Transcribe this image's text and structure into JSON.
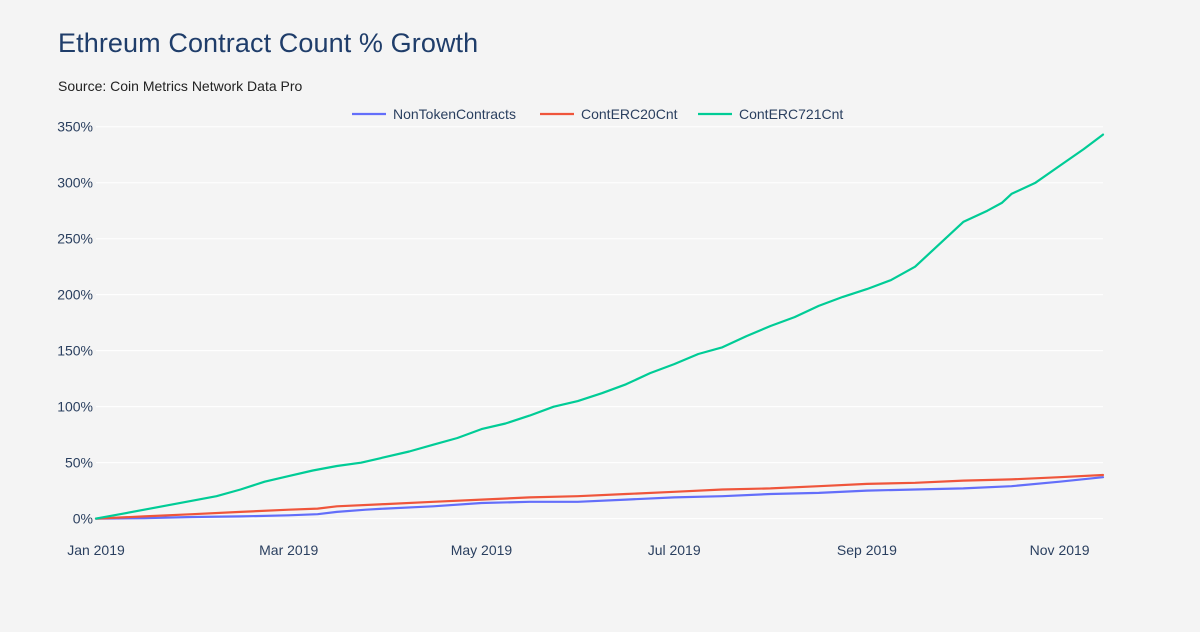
{
  "title": "Ethreum Contract Count % Growth",
  "subtitle": "Source: Coin Metrics Network Data Pro",
  "colors": {
    "background": "#f4f4f4",
    "grid": "#ffffff",
    "title": "#1f3d6a",
    "tick_text": "#2a3f5f"
  },
  "chart_data": {
    "type": "line",
    "title": "Ethreum Contract Count % Growth",
    "xlabel": "",
    "ylabel": "",
    "x_unit": "month_index (0 = Jan 1 2019)",
    "xlim": [
      0,
      10.45
    ],
    "ylim": [
      -3,
      356
    ],
    "x_ticks": [
      {
        "value": 0,
        "label": "Jan 2019"
      },
      {
        "value": 2,
        "label": "Mar 2019"
      },
      {
        "value": 4,
        "label": "May 2019"
      },
      {
        "value": 6,
        "label": "Jul 2019"
      },
      {
        "value": 8,
        "label": "Sep 2019"
      },
      {
        "value": 10,
        "label": "Nov 2019"
      }
    ],
    "y_ticks": [
      {
        "value": 0,
        "label": "0%"
      },
      {
        "value": 50,
        "label": "50%"
      },
      {
        "value": 100,
        "label": "100%"
      },
      {
        "value": 150,
        "label": "150%"
      },
      {
        "value": 200,
        "label": "200%"
      },
      {
        "value": 250,
        "label": "250%"
      },
      {
        "value": 300,
        "label": "300%"
      },
      {
        "value": 350,
        "label": "350%"
      }
    ],
    "grid": true,
    "legend_position": "top-center",
    "series": [
      {
        "name": "NonTokenContracts",
        "color": "#636efa",
        "x": [
          0,
          0.5,
          1,
          1.5,
          2,
          2.3,
          2.5,
          2.8,
          3,
          3.5,
          4,
          4.5,
          5,
          5.5,
          6,
          6.5,
          7,
          7.5,
          8,
          8.5,
          9,
          9.5,
          10,
          10.45
        ],
        "values": [
          0,
          0.5,
          1.5,
          2,
          3,
          4,
          6,
          8,
          9,
          11,
          14,
          15,
          15,
          17,
          19,
          20,
          22,
          23,
          25,
          26,
          27,
          29,
          33,
          37
        ]
      },
      {
        "name": "ContERC20Cnt",
        "color": "#ef553b",
        "x": [
          0,
          0.5,
          1,
          1.5,
          2,
          2.3,
          2.5,
          3,
          3.5,
          4,
          4.5,
          5,
          5.5,
          6,
          6.5,
          7,
          7.5,
          8,
          8.5,
          9,
          9.5,
          10,
          10.45
        ],
        "values": [
          0,
          2,
          4,
          6,
          8,
          9,
          11,
          13,
          15,
          17,
          19,
          20,
          22,
          24,
          26,
          27,
          29,
          31,
          32,
          34,
          35,
          37,
          39
        ]
      },
      {
        "name": "ContERC721Cnt",
        "color": "#00cc96",
        "x": [
          0,
          0.25,
          0.5,
          0.75,
          1,
          1.25,
          1.5,
          1.75,
          2,
          2.25,
          2.5,
          2.75,
          3,
          3.25,
          3.5,
          3.75,
          4,
          4.25,
          4.5,
          4.75,
          5,
          5.25,
          5.5,
          5.75,
          6,
          6.25,
          6.5,
          6.75,
          7,
          7.25,
          7.5,
          7.75,
          8,
          8.25,
          8.5,
          8.75,
          9,
          9.25,
          9.4,
          9.5,
          9.75,
          10,
          10.25,
          10.45
        ],
        "values": [
          0,
          4,
          8,
          12,
          16,
          20,
          26,
          33,
          38,
          43,
          47,
          50,
          55,
          60,
          66,
          72,
          80,
          85,
          92,
          100,
          105,
          112,
          120,
          130,
          138,
          147,
          153,
          163,
          172,
          180,
          190,
          198,
          205,
          213,
          225,
          245,
          265,
          275,
          282,
          290,
          300,
          315,
          330,
          343
        ]
      }
    ]
  }
}
